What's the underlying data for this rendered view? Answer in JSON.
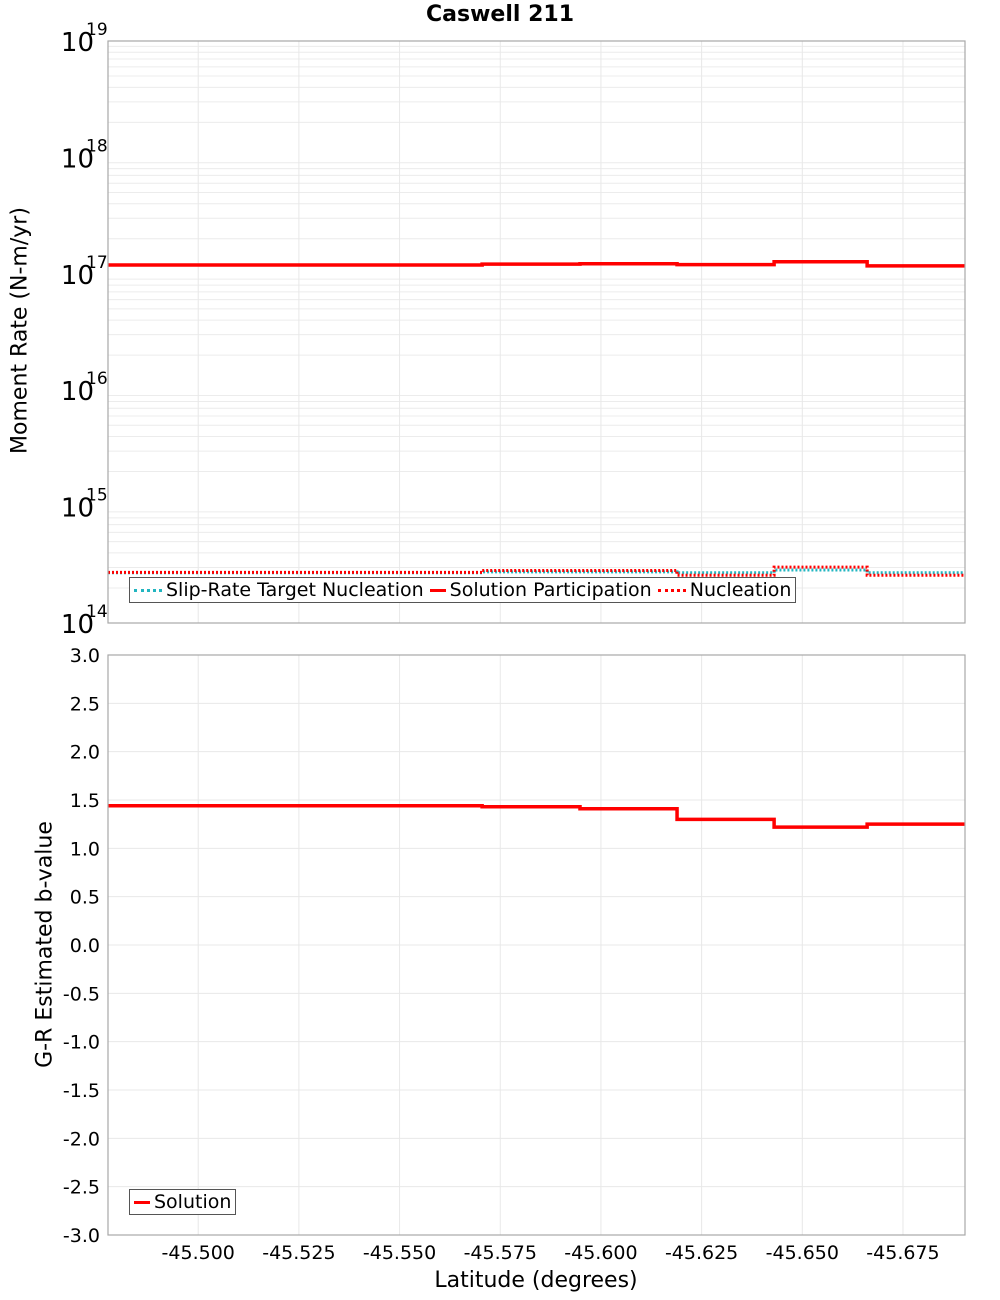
{
  "chart_data": [
    {
      "type": "line",
      "subtype": "step",
      "title": "Caswell 211",
      "xlabel": "Latitude (degrees)",
      "ylabel": "Moment Rate (N-m/yr)",
      "yscale": "log",
      "ylim": [
        100000000000000.0,
        1e+19
      ],
      "xlim": [
        -45.4776,
        -45.6904
      ],
      "xticks": [
        "-45.500",
        "-45.525",
        "-45.550",
        "-45.575",
        "-45.600",
        "-45.625",
        "-45.650",
        "-45.675"
      ],
      "yticks": [
        {
          "base": "10",
          "exp": "19"
        },
        {
          "base": "10",
          "exp": "18"
        },
        {
          "base": "10",
          "exp": "17"
        },
        {
          "base": "10",
          "exp": "16"
        },
        {
          "base": "10",
          "exp": "15"
        },
        {
          "base": "10",
          "exp": "14"
        }
      ],
      "grid": true,
      "legend_position": "lower-left",
      "segment_edges": [
        -45.4776,
        -45.5019,
        -45.5255,
        -45.5481,
        -45.5705,
        -45.5948,
        -45.6189,
        -45.643,
        -45.6661,
        -45.6904
      ],
      "series": [
        {
          "name": "Slip-Rate Target Nucleation",
          "color": "#22b5c0",
          "style": "dotted",
          "values": [
            270000000000000.0,
            270000000000000.0,
            270000000000000.0,
            270000000000000.0,
            275000000000000.0,
            275000000000000.0,
            270000000000000.0,
            285000000000000.0,
            270000000000000.0
          ]
        },
        {
          "name": "Solution Participation",
          "color": "#ff0000",
          "style": "solid",
          "values": [
            1.19e+17,
            1.19e+17,
            1.19e+17,
            1.19e+17,
            1.21e+17,
            1.22e+17,
            1.2e+17,
            1.27e+17,
            1.17e+17
          ]
        },
        {
          "name": "Nucleation",
          "color": "#ff0000",
          "style": "dotted",
          "values": [
            275000000000000.0,
            275000000000000.0,
            275000000000000.0,
            275000000000000.0,
            285000000000000.0,
            285000000000000.0,
            260000000000000.0,
            305000000000000.0,
            260000000000000.0
          ]
        }
      ]
    },
    {
      "type": "line",
      "subtype": "step",
      "title": "",
      "xlabel": "Latitude (degrees)",
      "ylabel": "G-R Estimated b-value",
      "ylim": [
        -3.0,
        3.0
      ],
      "xlim": [
        -45.4776,
        -45.6904
      ],
      "xticks": [
        "-45.500",
        "-45.525",
        "-45.550",
        "-45.575",
        "-45.600",
        "-45.625",
        "-45.650",
        "-45.675"
      ],
      "yticks": [
        "3.0",
        "2.5",
        "2.0",
        "1.5",
        "1.0",
        "0.5",
        "0.0",
        "-0.5",
        "-1.0",
        "-1.5",
        "-2.0",
        "-2.5",
        "-3.0"
      ],
      "grid": true,
      "legend_position": "lower-left",
      "segment_edges": [
        -45.4776,
        -45.5019,
        -45.5255,
        -45.5481,
        -45.5705,
        -45.5948,
        -45.6189,
        -45.643,
        -45.6661,
        -45.6904
      ],
      "series": [
        {
          "name": "Solution",
          "color": "#ff0000",
          "style": "solid",
          "values": [
            1.44,
            1.44,
            1.44,
            1.44,
            1.43,
            1.41,
            1.3,
            1.22,
            1.25
          ]
        }
      ]
    }
  ],
  "title": "Caswell 211",
  "top": {
    "ylabel": "Moment Rate (N-m/yr)",
    "legend": [
      "Slip-Rate Target Nucleation",
      "Solution Participation",
      "Nucleation"
    ]
  },
  "bottom": {
    "ylabel": "G-R Estimated b-value",
    "xlabel": "Latitude (degrees)",
    "legend": [
      "Solution"
    ]
  }
}
